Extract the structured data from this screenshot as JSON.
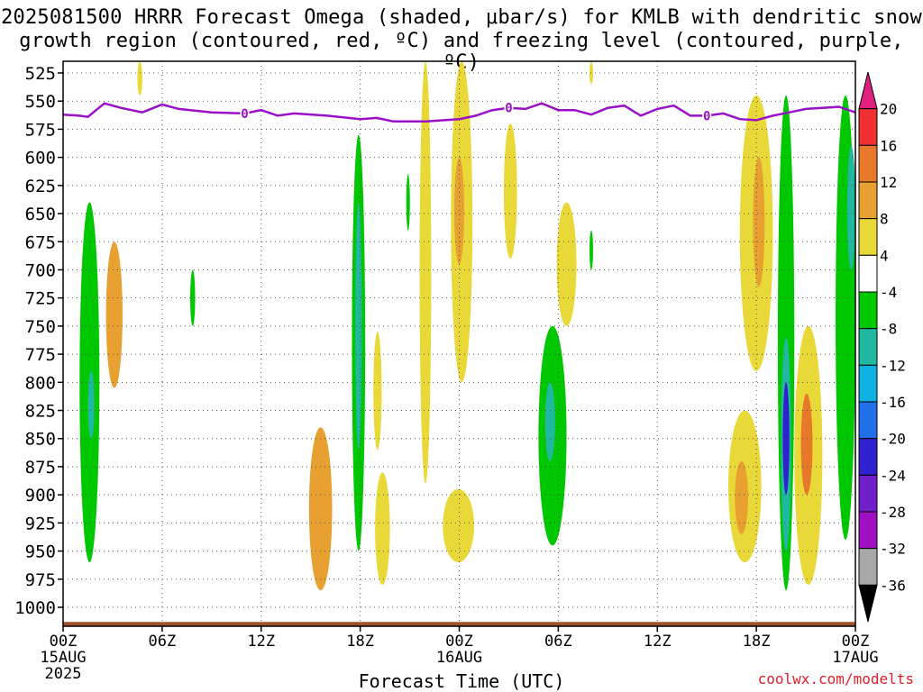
{
  "title_line1": "2025081500 HRRR Forecast Omega (shaded, μbar/s) for KMLB with dendritic snow",
  "title_line2": "growth region (contoured, red, ºC) and freezing level (contoured, purple, ºC)",
  "credit": "coolwx.com/modelts",
  "chart_data": {
    "type": "heatmap",
    "xlabel": "Forecast Time (UTC)",
    "x_ticks": [
      {
        "label": "00Z",
        "sub": "15AUG",
        "sub2": "2025",
        "hour": 0
      },
      {
        "label": "06Z",
        "sub": "",
        "sub2": "",
        "hour": 6
      },
      {
        "label": "12Z",
        "sub": "",
        "sub2": "",
        "hour": 12
      },
      {
        "label": "18Z",
        "sub": "",
        "sub2": "",
        "hour": 18
      },
      {
        "label": "00Z",
        "sub": "16AUG",
        "sub2": "",
        "hour": 24
      },
      {
        "label": "06Z",
        "sub": "",
        "sub2": "",
        "hour": 30
      },
      {
        "label": "12Z",
        "sub": "",
        "sub2": "",
        "hour": 36
      },
      {
        "label": "18Z",
        "sub": "",
        "sub2": "",
        "hour": 42
      },
      {
        "label": "00Z",
        "sub": "17AUG",
        "sub2": "",
        "hour": 48
      }
    ],
    "xlim": [
      0,
      48
    ],
    "ylabel": "",
    "y_ticks": [
      525,
      550,
      575,
      600,
      625,
      650,
      675,
      700,
      725,
      750,
      775,
      800,
      825,
      850,
      875,
      900,
      925,
      950,
      975,
      1000
    ],
    "ylim": [
      515,
      1020
    ],
    "grid": true,
    "colorbar": {
      "labels": [
        "20",
        "16",
        "12",
        "8",
        "4",
        "-4",
        "-8",
        "-12",
        "-16",
        "-20",
        "-24",
        "-28",
        "-32",
        "-36"
      ],
      "colors": [
        "#e0207f",
        "#f03030",
        "#e8782a",
        "#e8a030",
        "#e8d838",
        "#ffffff",
        "#00c800",
        "#20b8a0",
        "#10b0e0",
        "#2070e8",
        "#3020d0",
        "#7020c8",
        "#a010c0",
        "#a8a8a8",
        "#000000"
      ]
    },
    "freezing_level": {
      "label": "0",
      "label_hours": [
        11,
        27,
        39
      ],
      "hours": [
        0,
        1,
        1.5,
        2.5,
        3.5,
        4.8,
        6,
        7,
        9,
        11,
        12,
        13,
        14,
        16,
        18,
        19,
        20,
        22,
        24,
        25,
        26,
        27,
        28,
        29,
        30,
        31,
        32,
        33,
        34,
        35,
        36,
        37,
        38,
        39,
        40,
        41,
        42,
        43,
        44,
        45,
        46,
        47,
        48
      ],
      "pressure": [
        562,
        563,
        564,
        552,
        556,
        560,
        553,
        557,
        560,
        561,
        558,
        563,
        561,
        563,
        566,
        565,
        568,
        568,
        566,
        563,
        558,
        556,
        557,
        552,
        558,
        558,
        562,
        556,
        554,
        563,
        557,
        554,
        563,
        563,
        561,
        566,
        567,
        563,
        560,
        557,
        556,
        555,
        560
      ]
    },
    "omega_regions": [
      {
        "value": -8,
        "hours": [
          1.0,
          2.2
        ],
        "p": [
          640,
          960
        ]
      },
      {
        "value": -12,
        "hours": [
          1.5,
          1.9
        ],
        "p": [
          790,
          850
        ]
      },
      {
        "value": 8,
        "hours": [
          2.6,
          3.6
        ],
        "p": [
          675,
          805
        ]
      },
      {
        "value": 4,
        "hours": [
          4.5,
          4.8
        ],
        "p": [
          515,
          545
        ]
      },
      {
        "value": -8,
        "hours": [
          7.7,
          8.0
        ],
        "p": [
          700,
          750
        ]
      },
      {
        "value": 8,
        "hours": [
          14.9,
          16.3
        ],
        "p": [
          840,
          985
        ]
      },
      {
        "value": -8,
        "hours": [
          17.5,
          18.3
        ],
        "p": [
          580,
          950
        ]
      },
      {
        "value": -12,
        "hours": [
          17.7,
          18.1
        ],
        "p": [
          640,
          860
        ]
      },
      {
        "value": 4,
        "hours": [
          18.8,
          19.3
        ],
        "p": [
          755,
          860
        ]
      },
      {
        "value": 4,
        "hours": [
          18.9,
          19.8
        ],
        "p": [
          880,
          980
        ]
      },
      {
        "value": -8,
        "hours": [
          20.8,
          21.0
        ],
        "p": [
          615,
          665
        ]
      },
      {
        "value": 4,
        "hours": [
          21.6,
          22.3
        ],
        "p": [
          515,
          890
        ]
      },
      {
        "value": 4,
        "hours": [
          23.5,
          24.8
        ],
        "p": [
          515,
          800
        ]
      },
      {
        "value": 8,
        "hours": [
          23.7,
          24.3
        ],
        "p": [
          600,
          695
        ]
      },
      {
        "value": 4,
        "hours": [
          23.0,
          24.9
        ],
        "p": [
          895,
          960
        ]
      },
      {
        "value": 4,
        "hours": [
          26.7,
          27.5
        ],
        "p": [
          570,
          690
        ]
      },
      {
        "value": -8,
        "hours": [
          28.8,
          30.5
        ],
        "p": [
          750,
          945
        ]
      },
      {
        "value": -12,
        "hours": [
          29.2,
          29.8
        ],
        "p": [
          800,
          870
        ]
      },
      {
        "value": 4,
        "hours": [
          29.9,
          31.1
        ],
        "p": [
          640,
          750
        ]
      },
      {
        "value": -8,
        "hours": [
          31.9,
          32.1
        ],
        "p": [
          665,
          700
        ]
      },
      {
        "value": 4,
        "hours": [
          31.9,
          32.1
        ],
        "p": [
          515,
          535
        ]
      },
      {
        "value": 4,
        "hours": [
          40.3,
          42.3
        ],
        "p": [
          825,
          960
        ]
      },
      {
        "value": 8,
        "hours": [
          40.7,
          41.5
        ],
        "p": [
          870,
          935
        ]
      },
      {
        "value": 4,
        "hours": [
          41.0,
          43.0
        ],
        "p": [
          545,
          790
        ]
      },
      {
        "value": 8,
        "hours": [
          41.8,
          42.5
        ],
        "p": [
          600,
          715
        ]
      },
      {
        "value": -8,
        "hours": [
          43.3,
          44.3
        ],
        "p": [
          545,
          985
        ]
      },
      {
        "value": -12,
        "hours": [
          43.5,
          44.1
        ],
        "p": [
          760,
          950
        ]
      },
      {
        "value": -20,
        "hours": [
          43.6,
          44.0
        ],
        "p": [
          800,
          900
        ]
      },
      {
        "value": 4,
        "hours": [
          44.3,
          46.0
        ],
        "p": [
          750,
          980
        ]
      },
      {
        "value": 12,
        "hours": [
          44.7,
          45.4
        ],
        "p": [
          810,
          900
        ]
      },
      {
        "value": -8,
        "hours": [
          46.8,
          48.0
        ],
        "p": [
          545,
          940
        ]
      },
      {
        "value": -12,
        "hours": [
          47.5,
          48.0
        ],
        "p": [
          590,
          700
        ]
      }
    ],
    "terrain": {
      "color": "#a0522d",
      "pressure": 1013
    }
  }
}
